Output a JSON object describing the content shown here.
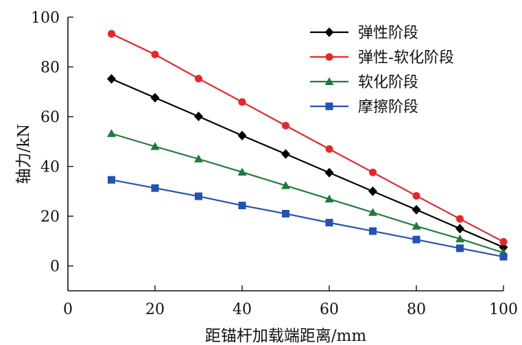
{
  "chart_data": {
    "type": "line",
    "xlabel": "距锚杆加载端距离/mm",
    "ylabel": "轴力/kN",
    "xlim": [
      0,
      100
    ],
    "ylim": [
      -10,
      100
    ],
    "x_ticks": [
      0,
      20,
      40,
      60,
      80,
      100
    ],
    "y_ticks": [
      0,
      20,
      40,
      60,
      80,
      100
    ],
    "legend_position": "top-right",
    "grid": false,
    "x": [
      10,
      20,
      30,
      40,
      50,
      60,
      70,
      80,
      90,
      100
    ],
    "series": [
      {
        "name": "弹性阶段",
        "color": "#000000",
        "marker": "diamond",
        "values": [
          75.2,
          67.6,
          60.1,
          52.4,
          45.0,
          37.5,
          30.0,
          22.6,
          15.0,
          7.5
        ]
      },
      {
        "name": "弹性-软化阶段",
        "color": "#e8262a",
        "marker": "circle",
        "values": [
          93.3,
          85.0,
          75.3,
          65.9,
          56.4,
          47.0,
          37.6,
          28.2,
          18.9,
          9.7
        ]
      },
      {
        "name": "软化阶段",
        "color": "#1e7a3c",
        "marker": "triangle",
        "values": [
          53.2,
          48.0,
          43.0,
          37.7,
          32.3,
          26.9,
          21.5,
          16.0,
          10.9,
          5.3
        ]
      },
      {
        "name": "摩擦阶段",
        "color": "#2252b5",
        "marker": "square",
        "values": [
          34.6,
          31.3,
          28.0,
          24.3,
          21.0,
          17.4,
          14.0,
          10.6,
          7.1,
          3.7
        ]
      }
    ]
  }
}
